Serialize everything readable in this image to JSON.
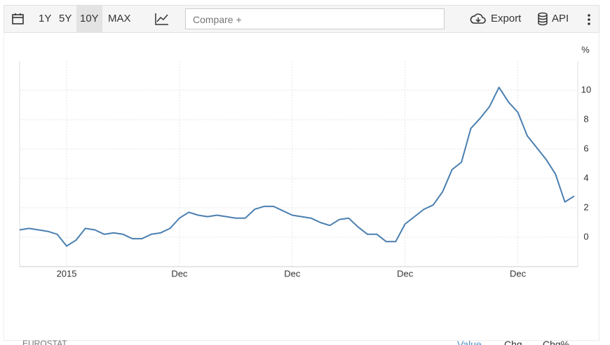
{
  "toolbar": {
    "ranges": [
      "1Y",
      "5Y",
      "10Y",
      "MAX"
    ],
    "compare": "Compare +",
    "export": "Export",
    "api": "API"
  },
  "footer": {
    "source": "EUROSTAT",
    "tabs": [
      "Value",
      "Chg",
      "Chg%"
    ]
  },
  "chart_data": {
    "type": "line",
    "y_unit": "%",
    "categories": [
      null,
      null,
      null,
      null,
      null,
      "2015",
      null,
      null,
      null,
      null,
      null,
      null,
      null,
      null,
      null,
      null,
      null,
      "Dec",
      null,
      null,
      null,
      null,
      null,
      null,
      null,
      null,
      null,
      null,
      null,
      "Dec",
      null,
      null,
      null,
      null,
      null,
      null,
      null,
      null,
      null,
      null,
      null,
      "Dec",
      null,
      null,
      null,
      null,
      null,
      null,
      null,
      null,
      null,
      null,
      null,
      "Dec",
      null,
      null,
      null,
      null,
      null,
      null
    ],
    "series": [
      {
        "color": "#4a7fb0",
        "values": [
          0.5,
          0.6,
          0.5,
          0.4,
          0.2,
          -0.6,
          -0.2,
          0.6,
          0.5,
          0.2,
          0.3,
          0.2,
          -0.1,
          -0.1,
          0.2,
          0.3,
          0.6,
          1.3,
          1.7,
          1.5,
          1.4,
          1.5,
          1.4,
          1.3,
          1.3,
          1.9,
          2.1,
          2.1,
          1.8,
          1.5,
          1.4,
          1.3,
          1.0,
          0.8,
          1.2,
          1.3,
          0.7,
          0.2,
          0.2,
          -0.3,
          -0.3,
          0.9,
          1.4,
          1.9,
          2.2,
          3.1,
          4.6,
          5.1,
          7.4,
          8.1,
          8.9,
          10.2,
          9.2,
          8.5,
          6.9,
          6.1,
          5.3,
          4.3,
          2.4,
          2.8
        ]
      }
    ],
    "ylim": [
      -2,
      12
    ],
    "yticks": [
      0,
      2,
      4,
      6,
      8,
      10
    ],
    "grid": true
  }
}
